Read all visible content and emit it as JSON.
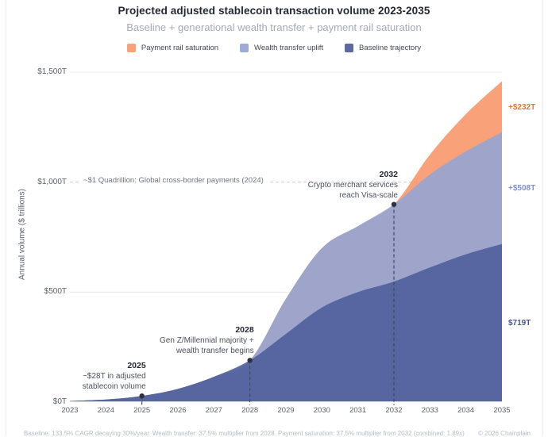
{
  "title": "Projected adjusted stablecoin transaction volume 2023-2035",
  "subtitle": "Baseline + generational wealth transfer + payment rail saturation",
  "legend": [
    {
      "label": "Payment rail saturation",
      "color": "#f9a178"
    },
    {
      "label": "Wealth transfer uplift",
      "color": "#9dabd8"
    },
    {
      "label": "Baseline trajectory",
      "color": "#5b69a2"
    }
  ],
  "chart_data": {
    "type": "area",
    "stacked": true,
    "x": [
      2023,
      2024,
      2025,
      2026,
      2027,
      2028,
      2029,
      2030,
      2031,
      2032,
      2033,
      2034,
      2035
    ],
    "series": [
      {
        "name": "Baseline trajectory",
        "fill": "#4f5e9c",
        "values": [
          5,
          12,
          28,
          60,
          115,
          190,
          310,
          430,
          500,
          548,
          612,
          672,
          719
        ]
      },
      {
        "name": "Wealth transfer uplift",
        "fill": "#95a4d4",
        "values": [
          0,
          0,
          0,
          0,
          0,
          0,
          160,
          270,
          300,
          351,
          423,
          468,
          508
        ]
      },
      {
        "name": "Payment rail saturation",
        "fill": "#f8976a",
        "values": [
          0,
          0,
          0,
          0,
          0,
          0,
          0,
          0,
          0,
          0,
          90,
          170,
          232
        ]
      }
    ],
    "title": "Projected adjusted stablecoin transaction volume 2023-2035",
    "xlabel": "",
    "ylabel": "Annual volume ($ trillions)",
    "ylim": [
      0,
      1500
    ],
    "grid": "horizontal",
    "legend_position": "top",
    "yticks": [
      {
        "value": 0,
        "label": "$0T"
      },
      {
        "value": 500,
        "label": "$500T"
      },
      {
        "value": 1000,
        "label": "$1,000T"
      },
      {
        "value": 1500,
        "label": "$1,500T"
      }
    ],
    "reference_line": {
      "value": 1000,
      "label": "~$1 Quadrillion: Global cross-border payments (2024)"
    },
    "annotations": [
      {
        "year": 2025,
        "anchor": 28,
        "title": "2025",
        "lines": [
          "~$28T in adjusted",
          "stablecoin volume"
        ]
      },
      {
        "year": 2028,
        "anchor": 190,
        "title": "2028",
        "lines": [
          "Gen Z/Millennial majority +",
          "wealth transfer begins"
        ]
      },
      {
        "year": 2032,
        "anchor": 899,
        "title": "2032",
        "lines": [
          "Crypto merchant services",
          "reach Visa-scale"
        ]
      }
    ],
    "end_labels": [
      {
        "text": "$719T",
        "color": "#47568f",
        "band": 0
      },
      {
        "text": "+$508T",
        "color": "#7f90d4",
        "band": 1
      },
      {
        "text": "+$232T",
        "color": "#ee7434",
        "band": 2
      }
    ]
  },
  "footer": {
    "left": "Baseline: 133.5% CAGR decaying 30%/year. Wealth transfer: 37.5% multiplier from 2028. Payment saturation: 37.5% multiplier from 2032 (combined: 1.89x)",
    "right": "© 2026 Chainplain"
  }
}
